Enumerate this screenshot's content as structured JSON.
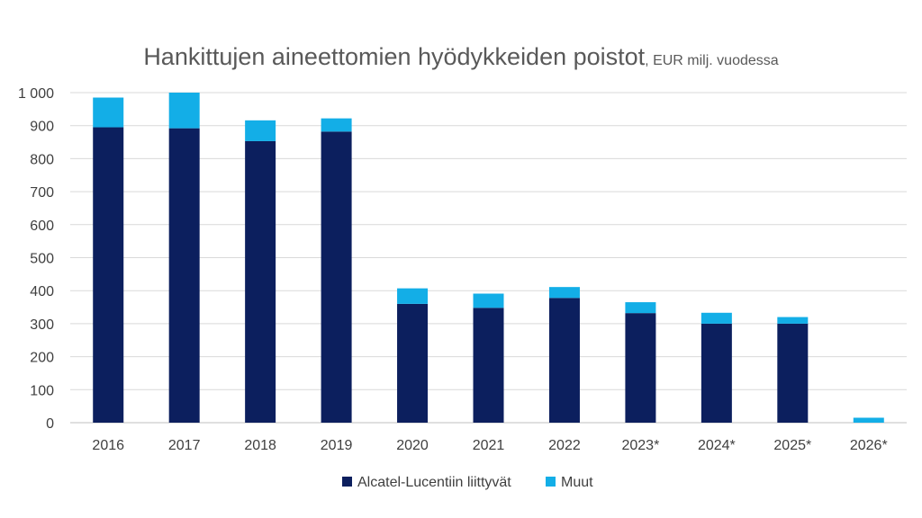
{
  "chart_data": {
    "type": "bar",
    "stacked": true,
    "title": "Hankittujen aineettomien hyödykkeiden poistot",
    "subtitle": ", EUR milj. vuodessa",
    "xlabel": "",
    "ylabel": "",
    "ylim": [
      0,
      1000
    ],
    "yticks": [
      0,
      100,
      200,
      300,
      400,
      500,
      600,
      700,
      800,
      900,
      1000
    ],
    "ytick_labels": [
      "0",
      "100",
      "200",
      "300",
      "400",
      "500",
      "600",
      "700",
      "800",
      "900",
      "1 000"
    ],
    "categories": [
      "2016",
      "2017",
      "2018",
      "2019",
      "2020",
      "2021",
      "2022",
      "2023*",
      "2024*",
      "2025*",
      "2026*"
    ],
    "series": [
      {
        "name": "Alcatel-Lucentiin liittyvät",
        "color": "#0c1f5e",
        "values": [
          895,
          892,
          853,
          882,
          360,
          348,
          378,
          332,
          300,
          300,
          0
        ]
      },
      {
        "name": "Muut",
        "color": "#13aee7",
        "values": [
          90,
          108,
          63,
          40,
          47,
          43,
          33,
          33,
          33,
          20,
          15
        ]
      }
    ],
    "grid": true,
    "legend_position": "bottom"
  }
}
